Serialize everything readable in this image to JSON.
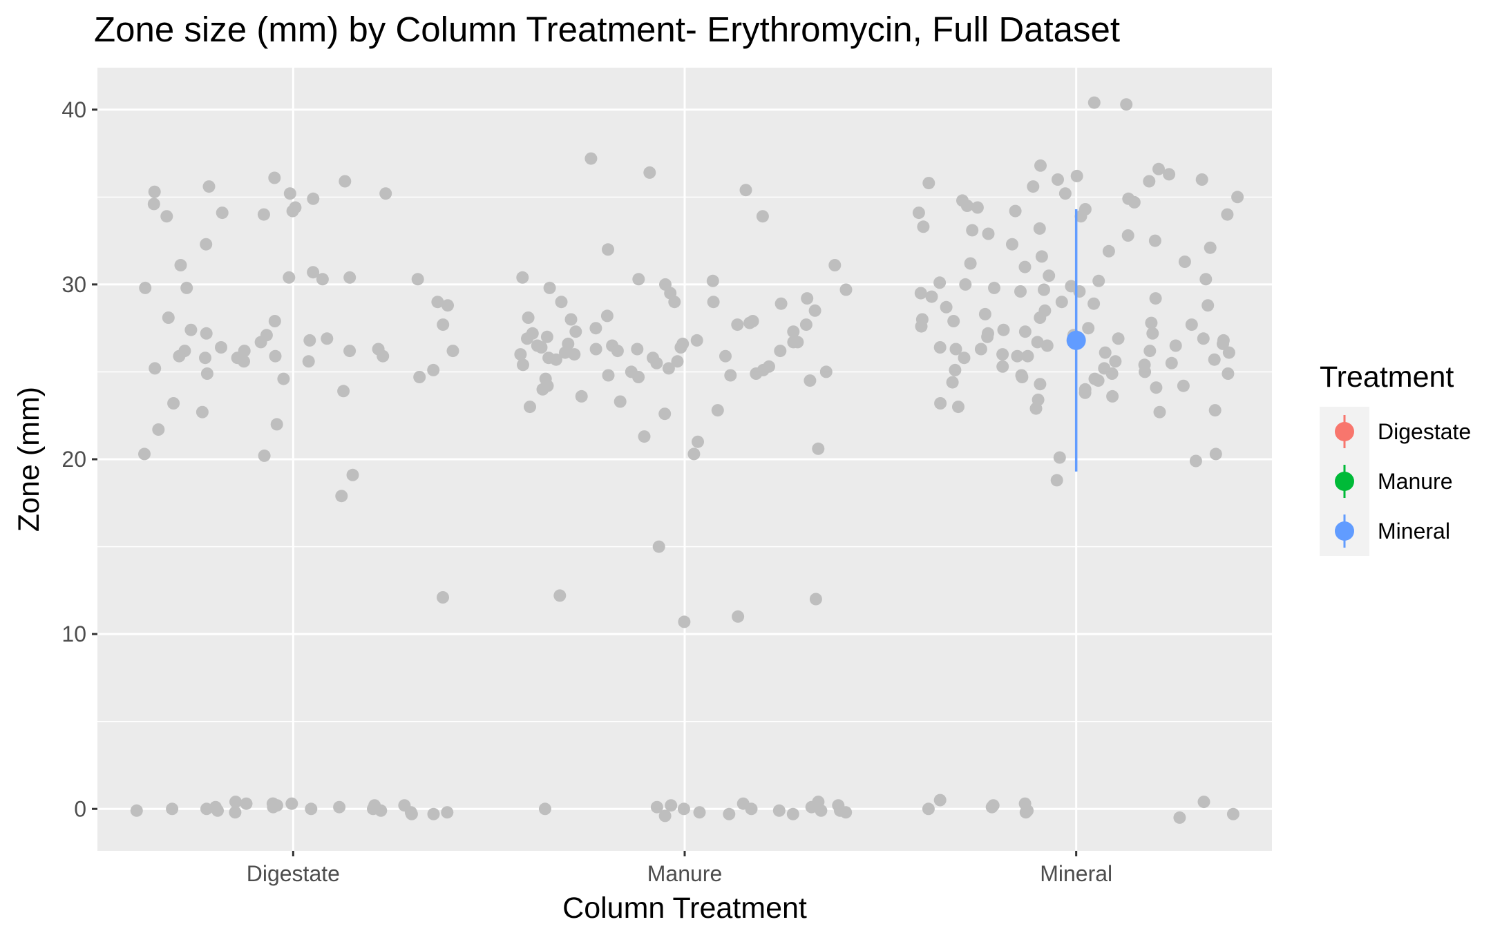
{
  "chart_data": {
    "type": "scatter",
    "title": "Zone size (mm) by Column Treatment- Erythromycin, Full Dataset",
    "xlabel": "Column Treatment",
    "ylabel": "Zone (mm)",
    "categories": [
      "Digestate",
      "Manure",
      "Mineral"
    ],
    "ylim": [
      -2.4,
      42.4
    ],
    "yticks": [
      0,
      10,
      20,
      30,
      40
    ],
    "grid": true,
    "background": "#ebebeb",
    "point_color": "#bebebe",
    "legend": {
      "title": "Treatment",
      "position": "right",
      "entries": [
        {
          "label": "Digestate",
          "color": "#f8766d"
        },
        {
          "label": "Manure",
          "color": "#00ba38"
        },
        {
          "label": "Mineral",
          "color": "#619cff"
        }
      ]
    },
    "jitter_points": [
      {
        "category": "Digestate",
        "values": [
          35.2,
          34.9,
          33.9,
          35.6,
          36.1,
          34.4,
          35.3,
          30.3,
          30.3,
          34.0,
          34.1,
          35.2,
          35.9,
          34.6,
          34.2,
          32.3,
          30.4,
          31.1,
          30.7,
          30.4,
          29.8,
          29.8,
          29.0,
          28.8,
          28.1,
          27.9,
          27.7,
          27.4,
          27.1,
          26.8,
          26.2,
          26.4,
          26.2,
          26.2,
          25.9,
          25.8,
          25.6,
          25.8,
          25.9,
          25.9,
          26.2,
          25.6,
          25.2,
          25.1,
          24.9,
          24.7,
          24.6,
          27.2,
          26.9,
          26.7,
          26.3,
          23.9,
          23.2,
          22.7,
          22.0,
          21.7,
          20.3,
          20.2,
          19.1,
          17.9,
          12.1,
          0.4,
          0.3,
          0.3,
          0.3,
          0.2,
          0.2,
          0.1,
          0.1,
          0.0,
          0.0,
          0.0,
          -0.1,
          -0.1,
          -0.2,
          -0.2,
          -0.3,
          -0.3,
          0.2,
          0.1,
          0.0,
          -0.1,
          -0.2,
          0.3
        ]
      },
      {
        "category": "Manure",
        "values": [
          37.2,
          36.4,
          35.4,
          33.9,
          32.0,
          31.1,
          30.4,
          30.3,
          30.2,
          30.0,
          29.8,
          29.7,
          29.5,
          29.2,
          29.0,
          29.0,
          29.0,
          28.9,
          28.5,
          28.2,
          28.1,
          28.0,
          27.9,
          27.8,
          27.7,
          27.7,
          27.5,
          27.3,
          27.3,
          27.2,
          27.0,
          26.9,
          26.8,
          26.7,
          26.7,
          26.6,
          26.6,
          26.5,
          26.5,
          26.4,
          26.4,
          26.3,
          26.3,
          26.2,
          26.2,
          26.1,
          26.0,
          26.0,
          25.9,
          25.8,
          25.8,
          25.7,
          25.6,
          25.5,
          25.4,
          25.3,
          25.2,
          25.1,
          25.0,
          25.0,
          24.9,
          24.8,
          24.8,
          24.7,
          24.6,
          24.5,
          24.2,
          24.0,
          23.6,
          23.3,
          23.0,
          22.8,
          22.6,
          21.3,
          21.0,
          20.6,
          20.3,
          15.0,
          12.2,
          12.0,
          11.0,
          10.7,
          0.4,
          0.3,
          0.2,
          0.2,
          0.1,
          0.1,
          0.0,
          0.0,
          -0.1,
          -0.1,
          -0.2,
          -0.2,
          -0.3,
          -0.3,
          -0.4,
          0.0,
          -0.1
        ]
      },
      {
        "category": "Mineral",
        "values": [
          40.4,
          40.3,
          36.8,
          36.6,
          36.3,
          36.2,
          36.0,
          36.0,
          35.9,
          35.8,
          35.6,
          35.2,
          35.0,
          34.9,
          34.8,
          34.7,
          34.5,
          34.4,
          34.3,
          34.2,
          34.1,
          34.0,
          33.9,
          33.3,
          33.2,
          33.1,
          32.8,
          32.9,
          32.5,
          32.3,
          32.1,
          31.9,
          31.6,
          31.3,
          31.2,
          31.0,
          30.5,
          30.3,
          30.2,
          30.1,
          30.0,
          29.9,
          29.8,
          29.7,
          29.6,
          29.6,
          29.5,
          29.3,
          29.2,
          29.0,
          28.9,
          28.8,
          28.7,
          28.5,
          28.3,
          28.1,
          28.0,
          27.9,
          27.8,
          27.7,
          27.6,
          27.5,
          27.4,
          27.3,
          27.2,
          27.2,
          27.1,
          27.0,
          26.9,
          26.9,
          26.8,
          26.7,
          26.6,
          26.5,
          26.5,
          26.4,
          26.3,
          26.3,
          26.2,
          26.1,
          26.1,
          26.0,
          25.9,
          25.9,
          25.8,
          25.7,
          25.6,
          25.5,
          25.4,
          25.3,
          25.2,
          25.1,
          25.0,
          24.9,
          24.9,
          24.8,
          24.7,
          24.6,
          24.5,
          24.4,
          24.3,
          24.2,
          24.1,
          24.0,
          23.8,
          23.6,
          23.4,
          23.2,
          23.0,
          22.9,
          22.8,
          22.7,
          20.3,
          20.1,
          19.9,
          18.8,
          0.5,
          0.4,
          0.3,
          0.2,
          0.1,
          0.0,
          -0.1,
          -0.2,
          -0.3,
          -0.5
        ]
      }
    ],
    "summary": [
      {
        "category": "Mineral",
        "series": "Mineral",
        "mean": 26.8,
        "lower": 19.3,
        "upper": 34.3
      }
    ]
  }
}
